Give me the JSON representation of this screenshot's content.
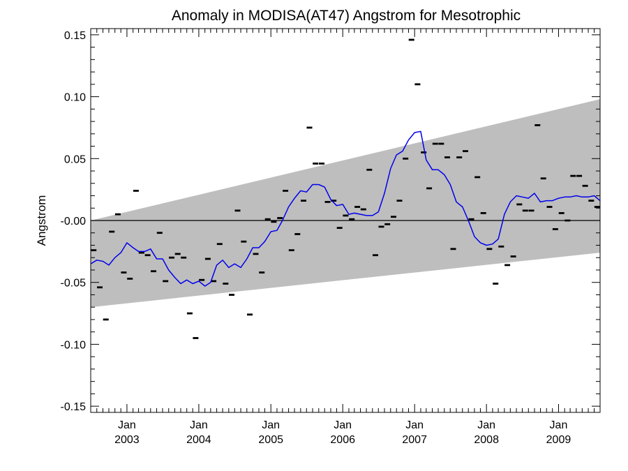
{
  "chart_data": {
    "type": "line",
    "title": "Anomaly in MODISA(AT47) Angstrom for Mesotrophic",
    "xlabel": "",
    "ylabel": "Angstrom",
    "xlim": [
      "2002-07-01",
      "2009-07-31"
    ],
    "ylim": [
      -0.155,
      0.155
    ],
    "y_ticks": [
      {
        "v": 0.15,
        "label": "0.15"
      },
      {
        "v": 0.1,
        "label": "0.10"
      },
      {
        "v": 0.05,
        "label": "0.05"
      },
      {
        "v": 0.0,
        "label": "-0.00"
      },
      {
        "v": -0.05,
        "label": "-0.05"
      },
      {
        "v": -0.1,
        "label": "-0.10"
      },
      {
        "v": -0.15,
        "label": "-0.15"
      }
    ],
    "x_ticks": [
      {
        "date": "2003-01-01",
        "month": "Jan",
        "year": "2003"
      },
      {
        "date": "2004-01-01",
        "month": "Jan",
        "year": "2004"
      },
      {
        "date": "2005-01-01",
        "month": "Jan",
        "year": "2005"
      },
      {
        "date": "2006-01-01",
        "month": "Jan",
        "year": "2006"
      },
      {
        "date": "2007-01-01",
        "month": "Jan",
        "year": "2007"
      },
      {
        "date": "2008-01-01",
        "month": "Jan",
        "year": "2008"
      },
      {
        "date": "2009-01-01",
        "month": "Jan",
        "year": "2009"
      }
    ],
    "grid": false,
    "zero_line": true,
    "band": {
      "name": "",
      "color": "#bebebe",
      "start": {
        "x": "2002-07-01",
        "lower": -0.07,
        "upper": 0.0
      },
      "end": {
        "x": "2009-07-31",
        "lower": -0.026,
        "upper": 0.098
      }
    },
    "series": [
      {
        "name": "",
        "kind": "points",
        "color": "#000000",
        "x": [
          "2002-07-16",
          "2002-08-16",
          "2002-09-16",
          "2002-10-16",
          "2002-11-16",
          "2002-12-16",
          "2003-01-16",
          "2003-02-16",
          "2003-03-16",
          "2003-04-16",
          "2003-05-16",
          "2003-06-16",
          "2003-07-16",
          "2003-08-16",
          "2003-09-16",
          "2003-10-16",
          "2003-11-16",
          "2003-12-16",
          "2004-01-16",
          "2004-02-16",
          "2004-03-16",
          "2004-04-16",
          "2004-05-16",
          "2004-06-16",
          "2004-07-16",
          "2004-08-16",
          "2004-09-16",
          "2004-10-16",
          "2004-11-16",
          "2004-12-16",
          "2005-01-16",
          "2005-02-16",
          "2005-03-16",
          "2005-04-16",
          "2005-05-16",
          "2005-06-16",
          "2005-07-16",
          "2005-08-16",
          "2005-09-16",
          "2005-10-16",
          "2005-11-16",
          "2005-12-16",
          "2006-01-16",
          "2006-02-16",
          "2006-03-16",
          "2006-04-16",
          "2006-05-16",
          "2006-06-16",
          "2006-07-16",
          "2006-08-16",
          "2006-09-16",
          "2006-10-16",
          "2006-11-16",
          "2006-12-16",
          "2007-01-16",
          "2007-02-16",
          "2007-03-16",
          "2007-04-16",
          "2007-05-16",
          "2007-06-16",
          "2007-07-16",
          "2007-08-16",
          "2007-09-16",
          "2007-10-16",
          "2007-11-16",
          "2007-12-16",
          "2008-01-16",
          "2008-02-16",
          "2008-03-16",
          "2008-04-16",
          "2008-05-16",
          "2008-06-16",
          "2008-07-16",
          "2008-08-16",
          "2008-09-16",
          "2008-10-16",
          "2008-11-16",
          "2008-12-16",
          "2009-01-16",
          "2009-02-16",
          "2009-03-16",
          "2009-04-16",
          "2009-05-16",
          "2009-06-16",
          "2009-07-16"
        ],
        "values": [
          -0.024,
          -0.054,
          -0.08,
          -0.009,
          0.005,
          -0.042,
          -0.047,
          0.024,
          -0.026,
          -0.028,
          -0.041,
          -0.01,
          -0.049,
          -0.03,
          -0.027,
          -0.03,
          -0.075,
          -0.095,
          -0.048,
          -0.031,
          -0.049,
          -0.019,
          -0.051,
          -0.06,
          0.008,
          -0.017,
          -0.076,
          -0.027,
          -0.042,
          0.001,
          -0.001,
          0.002,
          0.024,
          -0.024,
          -0.011,
          0.016,
          0.075,
          0.046,
          0.046,
          0.015,
          0.016,
          -0.006,
          0.004,
          0.001,
          0.011,
          0.009,
          0.041,
          -0.028,
          -0.005,
          -0.003,
          0.003,
          0.016,
          0.05,
          0.146,
          0.11,
          0.055,
          0.026,
          0.062,
          0.062,
          0.051,
          -0.023,
          0.051,
          0.056,
          0.001,
          0.035,
          0.006,
          -0.023,
          -0.051,
          -0.021,
          -0.036,
          -0.029,
          0.013,
          0.008,
          0.008,
          0.077,
          0.034,
          0.011,
          -0.007,
          0.006,
          0.0,
          0.036,
          0.036,
          0.028,
          0.016,
          0.011
        ]
      },
      {
        "name": "",
        "kind": "line",
        "color": "#0000ee",
        "x": [
          "2002-07-01",
          "2002-08-01",
          "2002-09-01",
          "2002-10-01",
          "2002-11-01",
          "2002-12-01",
          "2003-01-01",
          "2003-02-01",
          "2003-03-01",
          "2003-04-01",
          "2003-05-01",
          "2003-06-01",
          "2003-07-01",
          "2003-08-01",
          "2003-09-01",
          "2003-10-01",
          "2003-11-01",
          "2003-12-01",
          "2004-01-01",
          "2004-02-01",
          "2004-03-01",
          "2004-04-01",
          "2004-05-01",
          "2004-06-01",
          "2004-07-01",
          "2004-08-01",
          "2004-09-01",
          "2004-10-01",
          "2004-11-01",
          "2004-12-01",
          "2005-01-01",
          "2005-02-01",
          "2005-03-01",
          "2005-04-01",
          "2005-05-01",
          "2005-06-01",
          "2005-07-01",
          "2005-08-01",
          "2005-09-01",
          "2005-10-01",
          "2005-11-01",
          "2005-12-01",
          "2006-01-01",
          "2006-02-01",
          "2006-03-01",
          "2006-04-01",
          "2006-05-01",
          "2006-06-01",
          "2006-07-01",
          "2006-08-01",
          "2006-09-01",
          "2006-10-01",
          "2006-11-01",
          "2006-12-01",
          "2007-01-01",
          "2007-02-01",
          "2007-03-01",
          "2007-04-01",
          "2007-05-01",
          "2007-06-01",
          "2007-07-01",
          "2007-08-01",
          "2007-09-01",
          "2007-10-01",
          "2007-11-01",
          "2007-12-01",
          "2008-01-01",
          "2008-02-01",
          "2008-03-01",
          "2008-04-01",
          "2008-05-01",
          "2008-06-01",
          "2008-07-01",
          "2008-08-01",
          "2008-09-01",
          "2008-10-01",
          "2008-11-01",
          "2008-12-01",
          "2009-01-01",
          "2009-02-01",
          "2009-03-01",
          "2009-04-01",
          "2009-05-01",
          "2009-06-01",
          "2009-07-01",
          "2009-07-31"
        ],
        "values": [
          -0.035,
          -0.032,
          -0.033,
          -0.036,
          -0.03,
          -0.026,
          -0.018,
          -0.022,
          -0.025,
          -0.025,
          -0.023,
          -0.031,
          -0.031,
          -0.04,
          -0.046,
          -0.051,
          -0.048,
          -0.051,
          -0.049,
          -0.053,
          -0.05,
          -0.036,
          -0.032,
          -0.038,
          -0.035,
          -0.038,
          -0.031,
          -0.022,
          -0.022,
          -0.017,
          -0.009,
          -0.008,
          0.0,
          0.011,
          0.018,
          0.024,
          0.023,
          0.029,
          0.029,
          0.027,
          0.017,
          0.012,
          0.013,
          0.005,
          0.006,
          0.005,
          0.004,
          0.004,
          0.007,
          0.022,
          0.042,
          0.053,
          0.056,
          0.065,
          0.071,
          0.072,
          0.049,
          0.041,
          0.041,
          0.037,
          0.029,
          0.015,
          0.011,
          0.0,
          -0.013,
          -0.018,
          -0.02,
          -0.019,
          -0.015,
          0.005,
          0.015,
          0.02,
          0.019,
          0.018,
          0.022,
          0.015,
          0.016,
          0.016,
          0.018,
          0.019,
          0.019,
          0.02,
          0.019,
          0.019,
          0.02,
          0.016
        ]
      }
    ]
  }
}
